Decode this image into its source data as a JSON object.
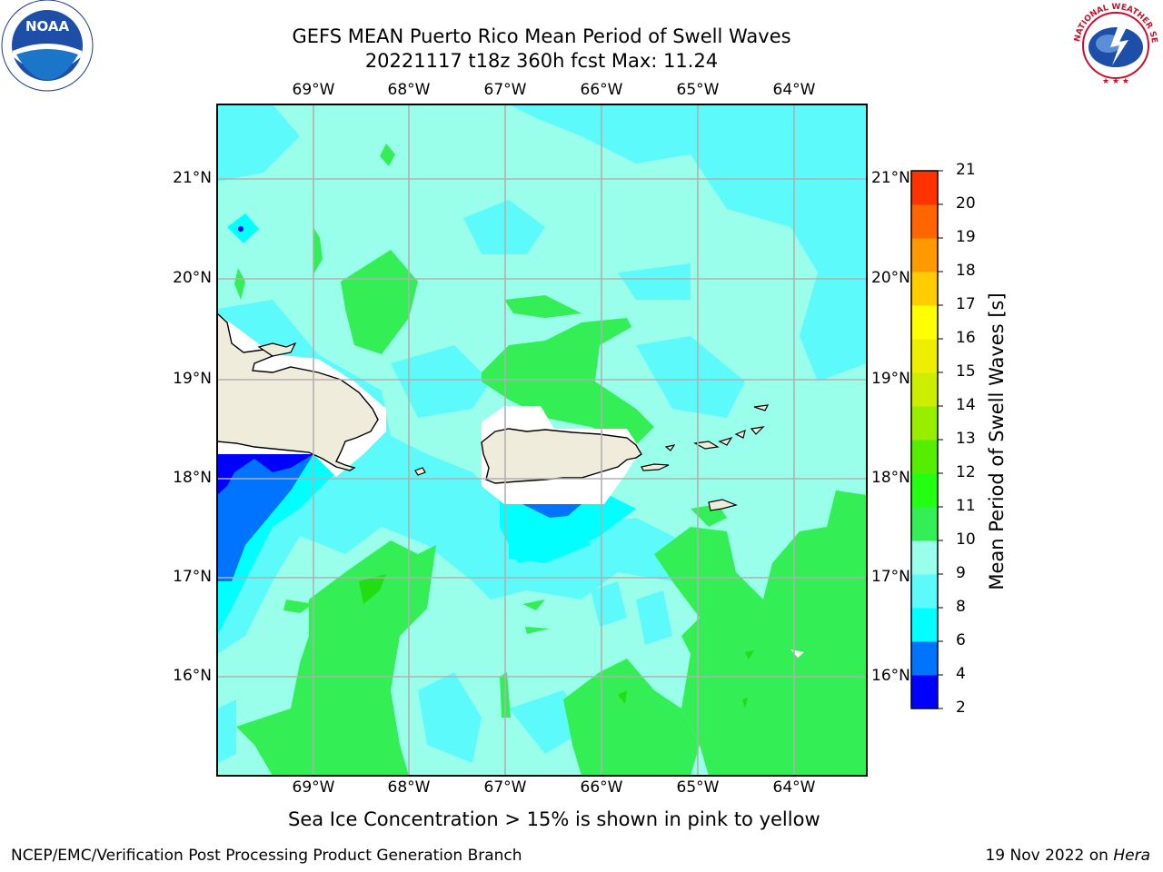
{
  "title_line1": "GEFS MEAN Puerto Rico Mean Period of Swell Waves",
  "title_line2": "20221117 t18z 360h fcst   Max: 11.24",
  "lon_labels": [
    "69°W",
    "68°W",
    "67°W",
    "66°W",
    "65°W",
    "64°W"
  ],
  "lat_labels": [
    "21°N",
    "20°N",
    "19°N",
    "18°N",
    "17°N",
    "16°N"
  ],
  "colorbar": {
    "label": "Mean Period of Swell Waves [s]",
    "ticks": [
      "2",
      "4",
      "6",
      "8",
      "9",
      "10",
      "11",
      "12",
      "13",
      "14",
      "15",
      "16",
      "17",
      "18",
      "19",
      "20",
      "21"
    ],
    "colors": [
      "#0000ff",
      "#0073ff",
      "#00ffff",
      "#5cfafa",
      "#99ffea",
      "#33ee55",
      "#22ff11",
      "#55ee00",
      "#99ee00",
      "#ccee00",
      "#eeee00",
      "#ffff00",
      "#ffcc00",
      "#ff9900",
      "#ff6600",
      "#ff3300",
      "#ff0000"
    ]
  },
  "caption": "Sea Ice Concentration > 15% is shown in pink to yellow",
  "footer_left": "NCEP/EMC/Verification Post Processing Product Generation Branch",
  "footer_date": "19 Nov 2022 on ",
  "footer_host": "Hera",
  "logos": {
    "left": "noaa-logo",
    "left_text": "NOAA",
    "right": "nws-logo",
    "right_text": "NATIONAL WEATHER SERVICE"
  },
  "colors": {
    "land": "#efecdc",
    "water_base": "#99ffea",
    "cyan_mid": "#5cfafa",
    "green": "#33ee55",
    "blue": "#0073ff",
    "navy": "#0000ff"
  }
}
